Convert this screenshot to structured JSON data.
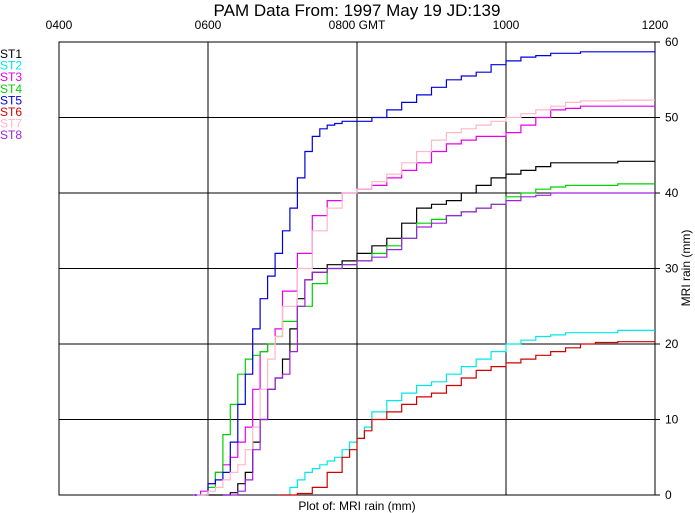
{
  "chart_data": {
    "type": "line",
    "title": "PAM Data From:  1997 May 19 JD:139",
    "xlabel": "Plot of:  MRI rain (mm)",
    "ylabel": "MRI rain (mm)",
    "x_unit": "hours GMT",
    "xlim": [
      4,
      12
    ],
    "ylim": [
      0,
      60
    ],
    "x_ticks": [
      {
        "value": 4,
        "label": "0400"
      },
      {
        "value": 6,
        "label": "0600"
      },
      {
        "value": 8,
        "label": "0800 GMT"
      },
      {
        "value": 10,
        "label": "1000"
      },
      {
        "value": 12,
        "label": "1200"
      }
    ],
    "y_ticks": [
      0,
      10,
      20,
      30,
      40,
      50,
      60
    ],
    "grid": true,
    "legend_position": "left",
    "series": [
      {
        "name": "ST1",
        "color": "#000000",
        "x": [
          5.97,
          6.2,
          6.3,
          6.4,
          6.5,
          6.6,
          6.7,
          6.8,
          6.9,
          7.0,
          7.1,
          7.2,
          7.3,
          7.4,
          7.6,
          7.8,
          8.0,
          8.2,
          8.4,
          8.6,
          8.8,
          9.0,
          9.2,
          9.4,
          9.6,
          9.8,
          10.0,
          10.2,
          10.4,
          10.6,
          11.0,
          11.5,
          12.0
        ],
        "y": [
          0,
          0,
          0.3,
          1.5,
          3,
          7,
          10,
          14,
          15.5,
          18,
          22,
          26,
          28.5,
          29.5,
          30.5,
          31,
          32,
          33,
          34,
          36,
          38,
          38.5,
          39,
          40,
          41,
          42,
          42.5,
          43,
          43.5,
          44,
          44,
          44.2,
          44.2
        ]
      },
      {
        "name": "ST2",
        "color": "#00e8e8",
        "x": [
          6.97,
          7.1,
          7.2,
          7.3,
          7.4,
          7.5,
          7.6,
          7.7,
          7.8,
          7.9,
          8.0,
          8.1,
          8.2,
          8.4,
          8.6,
          8.8,
          9.0,
          9.2,
          9.4,
          9.6,
          9.8,
          10.0,
          10.2,
          10.4,
          10.6,
          10.8,
          11.0,
          11.5,
          12.0
        ],
        "y": [
          0,
          1,
          2,
          3,
          3.5,
          4,
          4.5,
          5,
          6,
          7,
          7.5,
          9,
          11,
          12.5,
          13.5,
          14.5,
          15,
          16,
          17,
          18,
          19,
          20,
          20.5,
          21,
          21.2,
          21.5,
          21.5,
          21.8,
          21.8
        ]
      },
      {
        "name": "ST3",
        "color": "#e800e8",
        "x": [
          5.8,
          5.9,
          6.0,
          6.1,
          6.2,
          6.3,
          6.4,
          6.5,
          6.6,
          6.7,
          6.8,
          6.9,
          7.0,
          7.2,
          7.4,
          7.6,
          7.8,
          8.0,
          8.2,
          8.4,
          8.6,
          8.8,
          9.0,
          9.2,
          9.4,
          9.6,
          9.8,
          10.0,
          10.2,
          10.4,
          10.6,
          10.8,
          11.0,
          11.5,
          12.0
        ],
        "y": [
          0,
          0.5,
          1.5,
          3,
          4,
          5,
          7,
          9,
          14,
          19,
          20,
          22,
          27,
          32,
          37,
          39,
          40,
          40.5,
          41,
          42,
          43,
          44,
          45.5,
          46.5,
          47,
          47.5,
          47.5,
          48,
          49,
          50,
          51,
          51.2,
          51.5,
          51.5,
          51.5
        ]
      },
      {
        "name": "ST4",
        "color": "#00d000",
        "x": [
          5.95,
          6.0,
          6.1,
          6.2,
          6.3,
          6.4,
          6.5,
          6.6,
          6.7,
          6.8,
          6.9,
          7.0,
          7.2,
          7.4,
          7.6,
          7.8,
          8.0,
          8.2,
          8.4,
          8.6,
          8.8,
          9.0,
          9.2,
          9.4,
          9.6,
          9.8,
          10.0,
          10.2,
          10.4,
          10.6,
          10.8,
          11.0,
          11.5,
          12.0
        ],
        "y": [
          0,
          1,
          3,
          8,
          12,
          16,
          18,
          18.5,
          19,
          20,
          21,
          23,
          25,
          28,
          30,
          30.5,
          31,
          32,
          33,
          34,
          36,
          36.5,
          37,
          37.5,
          38,
          38.5,
          39.5,
          40,
          40.5,
          40.8,
          41,
          41,
          41.2,
          41.2
        ]
      },
      {
        "name": "ST5",
        "color": "#0000e0",
        "x": [
          5.82,
          6.0,
          6.1,
          6.2,
          6.3,
          6.4,
          6.5,
          6.6,
          6.7,
          6.8,
          6.9,
          7.0,
          7.1,
          7.2,
          7.3,
          7.4,
          7.5,
          7.6,
          7.7,
          7.8,
          8.0,
          8.2,
          8.4,
          8.6,
          8.8,
          9.0,
          9.2,
          9.4,
          9.6,
          9.8,
          10.0,
          10.2,
          10.4,
          10.6,
          10.8,
          11.0,
          11.5,
          12.0
        ],
        "y": [
          0,
          1.5,
          2,
          3,
          7,
          12,
          16,
          22,
          26,
          29,
          32,
          35,
          38,
          42,
          45.5,
          47.5,
          48.5,
          49,
          49.2,
          49.5,
          49.5,
          50,
          51,
          52,
          53,
          54,
          55,
          55.5,
          56,
          57,
          57.5,
          58,
          58.2,
          58.5,
          58.5,
          58.7,
          58.7,
          58.8
        ]
      },
      {
        "name": "ST6",
        "color": "#d00000",
        "x": [
          6.95,
          7.2,
          7.4,
          7.6,
          7.8,
          7.9,
          8.0,
          8.1,
          8.2,
          8.4,
          8.6,
          8.8,
          9.0,
          9.2,
          9.4,
          9.6,
          9.8,
          10.0,
          10.2,
          10.4,
          10.6,
          10.8,
          11.0,
          11.2,
          11.5,
          12.0
        ],
        "y": [
          0,
          0.2,
          1,
          3,
          5,
          6,
          7.5,
          8.5,
          10,
          11,
          12,
          13,
          13.5,
          14.5,
          15.5,
          16.5,
          17,
          17.5,
          18,
          18.5,
          19,
          19.5,
          20,
          20.2,
          20.3,
          20.3
        ]
      },
      {
        "name": "ST7",
        "color": "#ffb8c8",
        "x": [
          5.85,
          6.0,
          6.1,
          6.2,
          6.3,
          6.4,
          6.5,
          6.6,
          6.7,
          6.8,
          6.9,
          7.0,
          7.2,
          7.4,
          7.6,
          7.8,
          8.0,
          8.2,
          8.4,
          8.6,
          8.8,
          9.0,
          9.2,
          9.4,
          9.6,
          9.8,
          10.0,
          10.2,
          10.4,
          10.6,
          10.8,
          11.0,
          11.5,
          12.0
        ],
        "y": [
          0,
          0.5,
          1,
          2,
          3,
          4,
          6,
          9,
          14,
          18,
          21,
          25,
          30,
          35,
          38,
          40,
          40.5,
          41.5,
          42.5,
          44,
          45.5,
          47,
          48,
          48.5,
          49,
          49.5,
          50,
          50.5,
          51,
          51.5,
          52,
          52.2,
          52.3,
          52.3
        ]
      },
      {
        "name": "ST8",
        "color": "#a020e0",
        "x": [
          6.2,
          6.4,
          6.5,
          6.6,
          6.7,
          6.8,
          6.9,
          7.0,
          7.1,
          7.2,
          7.3,
          7.4,
          7.6,
          7.8,
          8.0,
          8.2,
          8.4,
          8.6,
          8.8,
          9.0,
          9.2,
          9.4,
          9.6,
          9.8,
          10.0,
          10.2,
          10.4,
          10.6,
          10.8,
          11.0,
          11.5,
          12.0
        ],
        "y": [
          0,
          0.5,
          2,
          6,
          10,
          14,
          15.5,
          16,
          19,
          25,
          28.5,
          29.5,
          30,
          30.5,
          31,
          31.5,
          32.5,
          34,
          35.5,
          36,
          37,
          37.5,
          38,
          38.5,
          39,
          39.5,
          39.7,
          40,
          40,
          40,
          40,
          40
        ]
      }
    ]
  }
}
